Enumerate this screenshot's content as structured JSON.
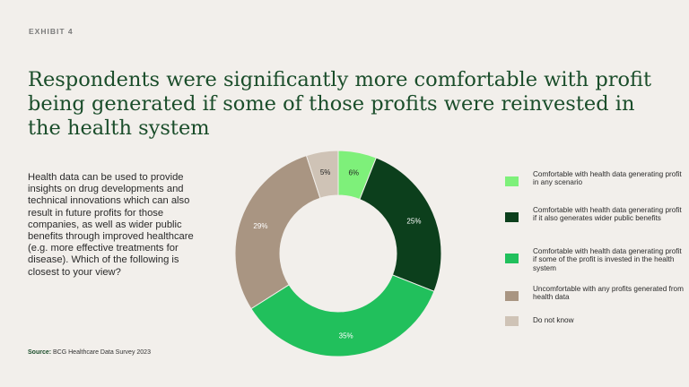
{
  "exhibit": "EXHIBIT 4",
  "title": "Respondents were significantly more comfortable with profit being generated if some of those profits were reinvested in the health system",
  "question": "Health data can be used to provide insights on drug developments and technical innovations which can also result in future profits for those companies, as well as wider public benefits through improved healthcare (e.g. more effective treatments for disease). Which of the following is closest to your view?",
  "source": {
    "label": "Source:",
    "text": "BCG Healthcare Data Survey 2023"
  },
  "chart_data": {
    "type": "pie",
    "variant": "donut",
    "categories": [
      "Comfortable with health data generating profit in any scenario",
      "Comfortable with health data generating profit if it also generates wider public benefits",
      "Comfortable with health data generating profit if some of the profit is invested in the health system",
      "Uncomfortable with any profits generated from health data",
      "Do not know"
    ],
    "values": [
      6,
      25,
      35,
      29,
      5
    ],
    "value_labels": [
      "6%",
      "25%",
      "35%",
      "29%",
      "5%"
    ],
    "colors": [
      "#7ef07a",
      "#0c3f1c",
      "#21c05c",
      "#a99582",
      "#cfc3b6"
    ],
    "label_colors": [
      "#1f1f1f",
      "#ffffff",
      "#ffffff",
      "#ffffff",
      "#1f1f1f"
    ],
    "legend_position": "right"
  }
}
